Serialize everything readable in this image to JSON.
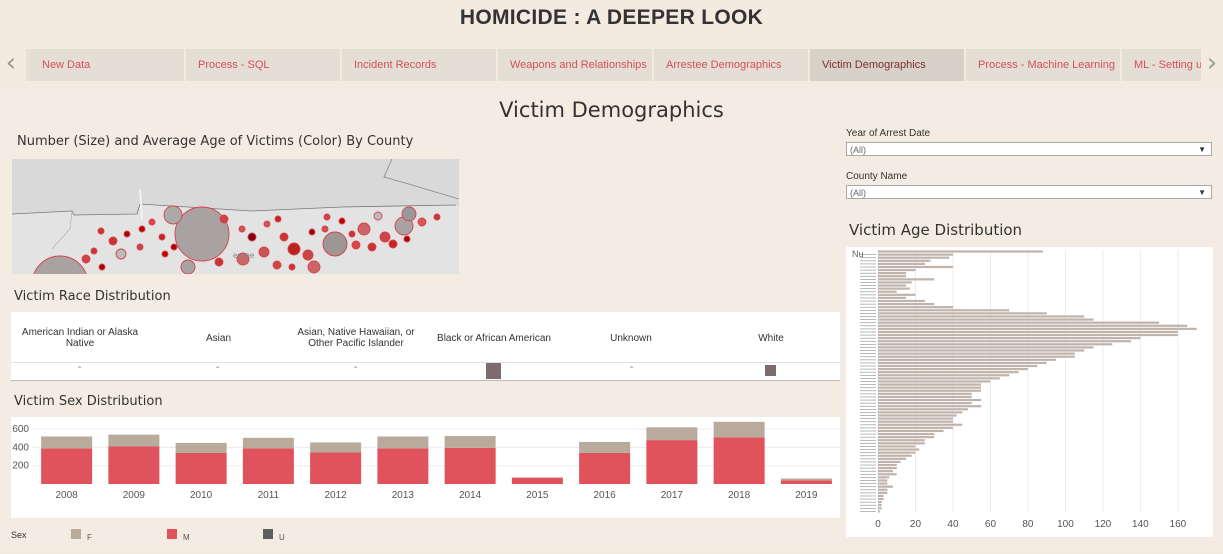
{
  "app_title": "HOMICIDE : A DEEPER LOOK",
  "tabs": [
    {
      "label": "New Data",
      "active": false
    },
    {
      "label": "Process - SQL",
      "active": false
    },
    {
      "label": "Incident Records",
      "active": false
    },
    {
      "label": "Weapons and Relationships",
      "active": false
    },
    {
      "label": "Arrestee Demographics",
      "active": false
    },
    {
      "label": "Victim Demographics",
      "active": true
    },
    {
      "label": "Process - Machine Learning",
      "active": false
    },
    {
      "label": "ML - Setting up",
      "active": false
    }
  ],
  "nav": {
    "prev_icon": "chevron-left-icon",
    "next_icon": "chevron-right-icon"
  },
  "dashboard": {
    "title": "Victim Demographics",
    "map_title": "Number (Size) and Average Age of Victims (Color) By County",
    "map_label": "essee",
    "race_title": "Victim Race Distribution",
    "sex_title": "Victim Sex Distribution",
    "age_title": "Victim Age Distribution"
  },
  "filters": {
    "year": {
      "label": "Year of Arrest Date",
      "value": "(All)"
    },
    "county": {
      "label": "County Name",
      "value": "(All)"
    }
  },
  "colors": {
    "F": "#b9ab9b",
    "M": "#e0525c",
    "U": "#5f5f5f",
    "race_square": "#7b6d6d",
    "age_bar": "#bfb3ab"
  },
  "race_table": {
    "columns": [
      "American Indian or Alaska Native",
      "Asian",
      "Asian, Native Hawaiian, or Other Pacific Islander",
      "Black or African American",
      "Unknown",
      "White"
    ],
    "values": [
      "-",
      "-",
      "-",
      null,
      "-",
      null
    ],
    "relative_size": [
      0,
      0,
      0,
      1.0,
      0,
      0.7
    ]
  },
  "sex_legend": {
    "title": "Sex",
    "items": [
      "F",
      "M",
      "U"
    ]
  },
  "chart_data": [
    {
      "type": "bar",
      "title": "Victim Sex Distribution",
      "categories": [
        "2008",
        "2009",
        "2010",
        "2011",
        "2012",
        "2013",
        "2014",
        "2015",
        "2016",
        "2017",
        "2018",
        "2019"
      ],
      "series": [
        {
          "name": "M",
          "values": [
            390,
            410,
            340,
            390,
            345,
            390,
            395,
            70,
            340,
            480,
            510,
            40
          ]
        },
        {
          "name": "F",
          "values": [
            130,
            130,
            110,
            115,
            110,
            130,
            130,
            0,
            120,
            140,
            170,
            20
          ]
        }
      ],
      "yticks": [
        "200",
        "400",
        "600"
      ],
      "ylim": [
        0,
        700
      ],
      "stacked": true,
      "grid": true
    },
    {
      "type": "bar",
      "orientation": "horizontal",
      "title": "Victim Age Distribution",
      "top_category": "Nu",
      "values": [
        88,
        40,
        38,
        28,
        25,
        40,
        20,
        15,
        15,
        30,
        18,
        15,
        17,
        10,
        20,
        15,
        25,
        30,
        40,
        70,
        90,
        110,
        115,
        150,
        165,
        170,
        160,
        160,
        140,
        135,
        125,
        115,
        110,
        105,
        105,
        95,
        90,
        85,
        80,
        75,
        70,
        65,
        60,
        55,
        55,
        55,
        50,
        50,
        55,
        50,
        55,
        48,
        45,
        42,
        40,
        40,
        45,
        40,
        35,
        30,
        30,
        25,
        25,
        20,
        22,
        20,
        18,
        15,
        12,
        10,
        10,
        8,
        10,
        6,
        5,
        5,
        8,
        5,
        5,
        3,
        3,
        2,
        2,
        2,
        1
      ],
      "xticks": [
        "0",
        "20",
        "40",
        "60",
        "80",
        "100",
        "120",
        "140",
        "160"
      ],
      "xlim": [
        0,
        175
      ],
      "grid": true
    }
  ]
}
